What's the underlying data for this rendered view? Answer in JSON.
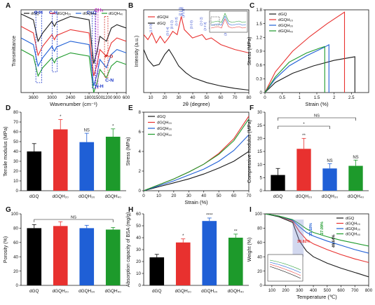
{
  "figure": {
    "palette": {
      "dGQ": "#1a1a1a",
      "dGQH20": "#e8312f",
      "dGQH30": "#1f5fd6",
      "dGQH40": "#1d9a2b"
    },
    "legend_names": [
      "dGQ",
      "dGQH₂₀",
      "dGQH₃₀",
      "dGQH₄₀"
    ]
  },
  "chart_data": [
    {
      "panel": "A",
      "type": "line",
      "xlabel": "Wavenumber (cm⁻¹)",
      "ylabel": "Transmittance",
      "xlim": [
        4000,
        600
      ],
      "x_reversed": true,
      "xticks": [
        3600,
        3000,
        2400,
        1800,
        1500,
        1200,
        900,
        600
      ],
      "series": [
        {
          "name": "dGQ",
          "x": [
            4000,
            3600,
            3450,
            3300,
            3000,
            2920,
            2850,
            2400,
            1800,
            1650,
            1540,
            1450,
            1240,
            1080,
            900,
            600
          ],
          "y": [
            0.95,
            0.88,
            0.62,
            0.72,
            0.86,
            0.8,
            0.85,
            0.92,
            0.88,
            0.35,
            0.5,
            0.68,
            0.62,
            0.78,
            0.82,
            0.78
          ]
        },
        {
          "name": "dGQH₂₀",
          "x": [
            4000,
            3600,
            3450,
            3300,
            3000,
            2920,
            2850,
            2400,
            1800,
            1650,
            1540,
            1450,
            1240,
            1080,
            900,
            600
          ],
          "y": [
            0.8,
            0.72,
            0.45,
            0.56,
            0.7,
            0.64,
            0.69,
            0.76,
            0.72,
            0.2,
            0.34,
            0.52,
            0.44,
            0.6,
            0.66,
            0.62
          ]
        },
        {
          "name": "dGQH₃₀",
          "x": [
            4000,
            3600,
            3450,
            3300,
            3000,
            2920,
            2850,
            2400,
            1800,
            1650,
            1540,
            1450,
            1240,
            1080,
            900,
            600
          ],
          "y": [
            0.66,
            0.58,
            0.32,
            0.42,
            0.56,
            0.5,
            0.55,
            0.62,
            0.58,
            0.08,
            0.22,
            0.4,
            0.3,
            0.46,
            0.52,
            0.48
          ]
        },
        {
          "name": "dGQH₄₀",
          "x": [
            4000,
            3600,
            3450,
            3300,
            3000,
            2920,
            2850,
            2400,
            1800,
            1650,
            1540,
            1450,
            1240,
            1080,
            900,
            600
          ],
          "y": [
            0.52,
            0.44,
            0.2,
            0.3,
            0.42,
            0.36,
            0.41,
            0.48,
            0.44,
            0.0,
            0.12,
            0.28,
            0.18,
            0.32,
            0.38,
            0.34
          ]
        }
      ],
      "annotations": [
        "O-H",
        "C-H",
        "C=O",
        "CH₂",
        "N-H",
        "P-O",
        "C-N"
      ]
    },
    {
      "panel": "B",
      "type": "line",
      "xlabel": "2θ (degree)",
      "ylabel": "Intensity (a.u.)",
      "xlim": [
        5,
        80
      ],
      "xticks": [
        10,
        20,
        30,
        40,
        50,
        60,
        70,
        80
      ],
      "series": [
        {
          "name": "dGQH",
          "x": [
            5,
            8,
            10.8,
            14,
            16.8,
            20,
            22.8,
            25.7,
            28.9,
            31.8,
            32.9,
            34,
            39.8,
            46.7,
            49.5,
            53.2,
            60,
            70,
            80
          ],
          "y": [
            0.7,
            0.64,
            0.72,
            0.6,
            0.68,
            0.6,
            0.66,
            0.74,
            0.7,
            0.92,
            0.84,
            0.76,
            0.66,
            0.7,
            0.64,
            0.66,
            0.58,
            0.52,
            0.48
          ]
        },
        {
          "name": "dGQ",
          "x": [
            5,
            8,
            12,
            16,
            20,
            23,
            26,
            30,
            35,
            40,
            50,
            60,
            70,
            80
          ],
          "y": [
            0.52,
            0.4,
            0.32,
            0.34,
            0.46,
            0.52,
            0.44,
            0.32,
            0.24,
            0.18,
            0.12,
            0.08,
            0.05,
            0.03
          ]
        }
      ],
      "peak_labels": [
        "(1 0 0)",
        "(0 0 2)",
        "(1 0 2)",
        "(2 1 0)",
        "(2 1 1)",
        "(1 1 2)",
        "(3 0 0)",
        "(2 0 2)",
        "(2 2 2)",
        "(2 1 3)",
        "(0 0 4)",
        "(3 0 4)"
      ]
    },
    {
      "panel": "C",
      "type": "line",
      "xlabel": "Strain (%)",
      "ylabel": "Stress (MPa)",
      "xlim": [
        0,
        3.0
      ],
      "ylim": [
        0,
        1.8
      ],
      "xticks": [
        0.0,
        0.5,
        1.0,
        1.5,
        2.0,
        2.5
      ],
      "yticks": [
        0.0,
        0.3,
        0.6,
        0.9,
        1.2,
        1.5,
        1.8
      ],
      "series": [
        {
          "name": "dGQ",
          "x": [
            0,
            0.3,
            0.8,
            1.4,
            2.0,
            2.6,
            2.6
          ],
          "y": [
            0,
            0.22,
            0.42,
            0.58,
            0.7,
            0.78,
            0.0
          ]
        },
        {
          "name": "dGQH₂₀",
          "x": [
            0,
            0.3,
            0.8,
            1.3,
            1.8,
            2.3,
            2.3
          ],
          "y": [
            0,
            0.45,
            0.9,
            1.22,
            1.5,
            1.75,
            0.0
          ]
        },
        {
          "name": "dGQH₃₀",
          "x": [
            0,
            0.3,
            0.7,
            1.2,
            1.7,
            1.85,
            1.85
          ],
          "y": [
            0,
            0.3,
            0.58,
            0.8,
            0.98,
            1.04,
            0.0
          ]
        },
        {
          "name": "dGQH₄₀",
          "x": [
            0,
            0.3,
            0.7,
            1.2,
            1.6,
            1.73,
            1.73
          ],
          "y": [
            0,
            0.34,
            0.66,
            0.86,
            0.97,
            1.0,
            0.0
          ]
        }
      ]
    },
    {
      "panel": "D",
      "type": "bar",
      "ylabel": "Tensile modulus (MPa)",
      "ylim": [
        0,
        80
      ],
      "yticks": [
        0,
        10,
        20,
        30,
        40,
        50,
        60,
        70,
        80
      ],
      "categories": [
        "dGQ",
        "dGQH₂₀",
        "dGQH₃₀",
        "dGQH₄₀"
      ],
      "values": [
        40,
        62.5,
        49.5,
        55
      ],
      "errors": [
        8,
        10,
        9,
        8
      ],
      "significance": [
        "",
        "*",
        "NS",
        "*"
      ]
    },
    {
      "panel": "E",
      "type": "line",
      "xlabel": "Strain (%)",
      "ylabel": "Stress (MPa)",
      "xlim": [
        0,
        70
      ],
      "ylim": [
        0,
        8
      ],
      "xticks": [
        0,
        10,
        20,
        30,
        40,
        50,
        60,
        70
      ],
      "yticks": [
        0,
        2,
        4,
        6,
        8
      ],
      "series": [
        {
          "name": "dGQ",
          "x": [
            0,
            10,
            20,
            30,
            40,
            50,
            60,
            70
          ],
          "y": [
            0,
            0.4,
            0.8,
            1.2,
            1.7,
            2.3,
            3.0,
            4.0
          ]
        },
        {
          "name": "dGQH₂₀",
          "x": [
            0,
            10,
            20,
            30,
            40,
            50,
            60,
            70
          ],
          "y": [
            0,
            0.6,
            1.2,
            1.9,
            2.7,
            3.8,
            5.3,
            7.6
          ]
        },
        {
          "name": "dGQH₃₀",
          "x": [
            0,
            10,
            20,
            30,
            40,
            50,
            60,
            70
          ],
          "y": [
            0,
            0.5,
            1.0,
            1.6,
            2.2,
            3.0,
            4.1,
            5.7
          ]
        },
        {
          "name": "dGQH₄₀",
          "x": [
            0,
            10,
            20,
            30,
            40,
            50,
            60,
            70
          ],
          "y": [
            0,
            0.6,
            1.2,
            1.9,
            2.7,
            3.7,
            5.1,
            7.3
          ]
        }
      ]
    },
    {
      "panel": "F",
      "type": "bar",
      "ylabel": "Compressive modulus (MPa)",
      "ylim": [
        0,
        30
      ],
      "yticks": [
        0,
        5,
        10,
        15,
        20,
        25,
        30
      ],
      "categories": [
        "dGQ",
        "dGQH₂₀",
        "dGQH₃₀",
        "dGQH₄₀"
      ],
      "values": [
        6,
        16,
        8.5,
        9.5
      ],
      "errors": [
        2.5,
        4,
        1.8,
        2.2
      ],
      "significance": [
        "",
        "**",
        "NS",
        "NS"
      ],
      "brackets": [
        {
          "from": "dGQ",
          "to": "dGQH₄₀",
          "label": "NS"
        },
        {
          "from": "dGQ",
          "to": "dGQH₃₀",
          "label": "*"
        }
      ]
    },
    {
      "panel": "G",
      "type": "bar",
      "ylabel": "Porosity (%)",
      "ylim": [
        0,
        100
      ],
      "yticks": [
        0,
        20,
        40,
        60,
        80,
        100
      ],
      "categories": [
        "dGQ",
        "dGQH₂₀",
        "dGQH₃₀",
        "dGQH₄₀"
      ],
      "values": [
        80,
        83,
        80,
        78
      ],
      "errors": [
        5,
        6,
        4,
        3
      ],
      "brackets": [
        {
          "from": "dGQ",
          "to": "dGQH₄₀",
          "label": "NS"
        }
      ]
    },
    {
      "panel": "H",
      "type": "bar",
      "ylabel": "Absorption capacity of BSA (mg/g)",
      "ylim": [
        0,
        60
      ],
      "yticks": [
        0,
        10,
        20,
        30,
        40,
        50,
        60
      ],
      "categories": [
        "dGQ",
        "dGQH₂₀",
        "dGQH₃₀",
        "dGQH₄₀"
      ],
      "values": [
        23.5,
        36,
        54,
        40
      ],
      "errors": [
        2.5,
        3,
        2.5,
        3
      ],
      "significance": [
        "",
        "*",
        "****",
        "**"
      ]
    },
    {
      "panel": "I",
      "type": "line",
      "xlabel": "Temperature (℃)",
      "ylabel": "Weight (%)",
      "xlim": [
        50,
        800
      ],
      "ylim": [
        0,
        100
      ],
      "xticks": [
        100,
        200,
        300,
        400,
        500,
        600,
        700,
        800
      ],
      "yticks": [
        0,
        20,
        40,
        60,
        80,
        100
      ],
      "series": [
        {
          "name": "dGQ",
          "x": [
            50,
            150,
            250,
            300,
            350,
            400,
            500,
            600,
            700,
            800
          ],
          "y": [
            100,
            96,
            88,
            62,
            48,
            40,
            31,
            24,
            18,
            12
          ]
        },
        {
          "name": "dGQH₂₀",
          "x": [
            50,
            150,
            250,
            300,
            350,
            400,
            500,
            600,
            700,
            800
          ],
          "y": [
            100,
            97,
            90,
            75,
            64,
            58,
            50,
            43,
            37,
            32
          ]
        },
        {
          "name": "dGQH₃₀",
          "x": [
            50,
            150,
            250,
            300,
            350,
            400,
            500,
            600,
            700,
            800
          ],
          "y": [
            100,
            97,
            91,
            82,
            74,
            69,
            62,
            56,
            50,
            45
          ]
        },
        {
          "name": "dGQH₄₀",
          "x": [
            50,
            150,
            250,
            300,
            350,
            400,
            500,
            600,
            700,
            800
          ],
          "y": [
            100,
            97,
            92,
            86,
            79,
            74,
            68,
            63,
            59,
            55
          ]
        }
      ],
      "annotations": [
        "38.82%",
        "33.18%",
        "27.09%",
        "49.64%"
      ]
    }
  ]
}
